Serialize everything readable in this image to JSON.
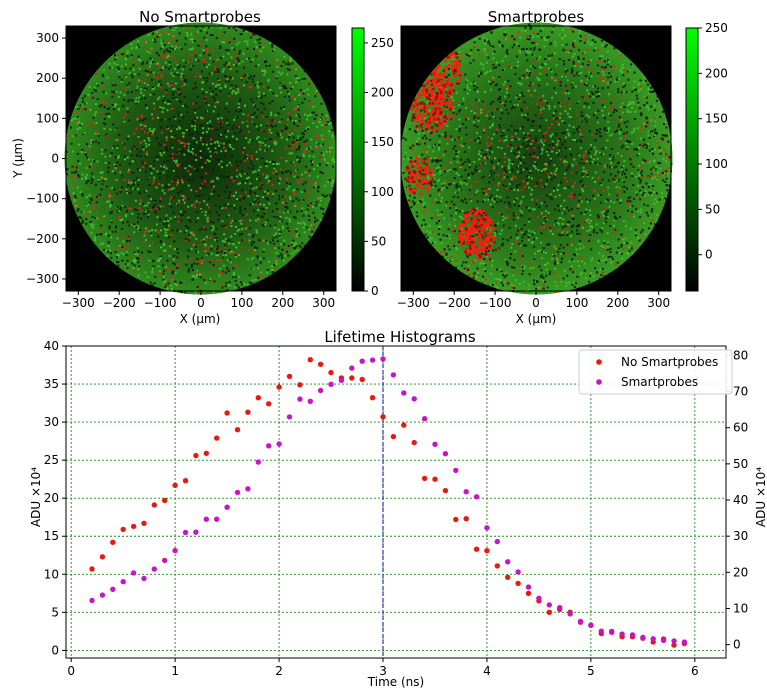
{
  "chart_data": [
    {
      "type": "heatmap",
      "title": "No Smartprobes",
      "xlabel": "X (μm)",
      "ylabel": "Y (μm)",
      "xlim": [
        -330,
        330
      ],
      "ylim": [
        -330,
        330
      ],
      "xticks": [
        -300,
        -200,
        -100,
        0,
        100,
        200,
        300
      ],
      "yticks": [
        300,
        200,
        100,
        0,
        -100,
        -200,
        -300
      ],
      "colorbar": {
        "ticks": [
          250,
          200,
          150,
          100,
          50,
          0
        ],
        "range": [
          0,
          265
        ],
        "colors": [
          "#000000",
          "#00ff00"
        ]
      }
    },
    {
      "type": "heatmap",
      "title": "Smartprobes",
      "xlabel": "X (μm)",
      "xlim": [
        -330,
        330
      ],
      "ylim": [
        -330,
        330
      ],
      "xticks": [
        -300,
        -200,
        -100,
        0,
        100,
        200,
        300
      ],
      "colorbar": {
        "ticks": [
          250,
          200,
          150,
          100,
          50,
          0
        ],
        "range": [
          -40,
          250
        ],
        "colors": [
          "#000000",
          "#00ff00"
        ]
      }
    },
    {
      "type": "scatter",
      "title": "Lifetime Histograms",
      "xlabel": "Time (ns)",
      "ylabel": "ADU ×10⁴",
      "ylabel_right": "ADU ×10⁴",
      "xlim": [
        -0.05,
        6.3
      ],
      "ylim": [
        -1,
        40
      ],
      "ylim_right": [
        -3.7,
        82.6
      ],
      "xticks": [
        0,
        1,
        2,
        3,
        4,
        5,
        6
      ],
      "yticks": [
        0,
        5,
        10,
        15,
        20,
        25,
        30,
        35,
        40
      ],
      "yticks_right": [
        0,
        10,
        20,
        30,
        40,
        50,
        60,
        70,
        80
      ],
      "grid": true,
      "legend_position": "top-right",
      "vline_x": 3.0,
      "x": [
        0.2,
        0.3,
        0.4,
        0.5,
        0.6,
        0.7,
        0.8,
        0.9,
        1.0,
        1.1,
        1.2,
        1.3,
        1.4,
        1.5,
        1.6,
        1.7,
        1.8,
        1.9,
        2.0,
        2.1,
        2.2,
        2.3,
        2.4,
        2.5,
        2.6,
        2.7,
        2.8,
        2.9,
        3.0,
        3.1,
        3.2,
        3.3,
        3.4,
        3.5,
        3.6,
        3.7,
        3.8,
        3.9,
        4.0,
        4.1,
        4.2,
        4.3,
        4.4,
        4.5,
        4.6,
        4.7,
        4.8,
        4.9,
        5.0,
        5.1,
        5.2,
        5.3,
        5.4,
        5.5,
        5.6,
        5.7,
        5.8,
        5.9
      ],
      "series": [
        {
          "name": "No Smartprobes",
          "color": "#e8190f",
          "axis": "left",
          "values": [
            10.7,
            12.3,
            14.2,
            15.9,
            16.3,
            16.7,
            19.1,
            19.7,
            21.7,
            22.3,
            25.6,
            25.9,
            27.9,
            31.2,
            29.0,
            31.3,
            33.2,
            32.4,
            34.6,
            36.0,
            34.9,
            38.2,
            37.6,
            36.5,
            35.8,
            35.8,
            35.6,
            33.2,
            30.7,
            28.1,
            29.6,
            27.3,
            22.6,
            22.5,
            21.0,
            17.2,
            17.3,
            13.3,
            13.1,
            11.1,
            9.6,
            8.8,
            7.5,
            6.5,
            5.0,
            5.4,
            5.0,
            3.7,
            3.3,
            2.2,
            2.5,
            1.8,
            1.8,
            1.6,
            1.1,
            1.5,
            0.7,
            0.9
          ]
        },
        {
          "name": "Smartprobes",
          "color": "#c814c8",
          "axis": "right",
          "values": [
            12.2,
            13.7,
            15.3,
            17.4,
            19.8,
            18.3,
            20.9,
            23.3,
            26.0,
            31.0,
            31.1,
            34.7,
            34.7,
            38.0,
            42.1,
            43.1,
            50.5,
            55.0,
            55.5,
            63.0,
            67.9,
            67.3,
            70.3,
            72.0,
            73.1,
            76.5,
            78.4,
            78.7,
            79.0,
            74.6,
            69.6,
            68.0,
            62.5,
            55.4,
            52.8,
            48.2,
            42.3,
            40.9,
            32.3,
            28.5,
            22.9,
            20.1,
            15.9,
            12.8,
            11.0,
            10.2,
            8.5,
            6.4,
            5.4,
            3.7,
            3.4,
            2.9,
            2.7,
            2.0,
            1.6,
            1.2,
            1.0,
            0.7
          ]
        }
      ]
    }
  ]
}
